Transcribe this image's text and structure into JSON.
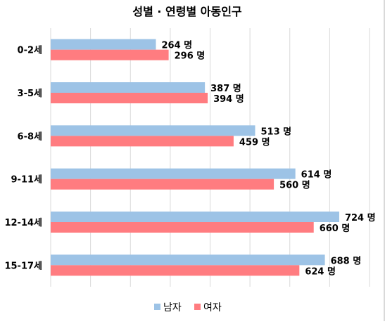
{
  "chart_data": {
    "type": "bar",
    "orientation": "horizontal",
    "title": "성별 · 연령별 아동인구",
    "categories": [
      "0-2세",
      "3-5세",
      "6-8세",
      "9-11세",
      "12-14세",
      "15-17세"
    ],
    "series": [
      {
        "name": "남자",
        "color": "#9dc3e6",
        "values": [
          264,
          387,
          513,
          614,
          724,
          688
        ],
        "labels": [
          "264 명",
          "387 명",
          "513 명",
          "614 명",
          "724 명",
          "688 명"
        ]
      },
      {
        "name": "여자",
        "color": "#ff7c80",
        "values": [
          296,
          394,
          459,
          560,
          660,
          624
        ],
        "labels": [
          "296 명",
          "394 명",
          "459 명",
          "560 명",
          "660 명",
          "624 명"
        ]
      }
    ],
    "xlim": [
      0,
      800
    ],
    "grid": true,
    "legend": "bottom"
  }
}
